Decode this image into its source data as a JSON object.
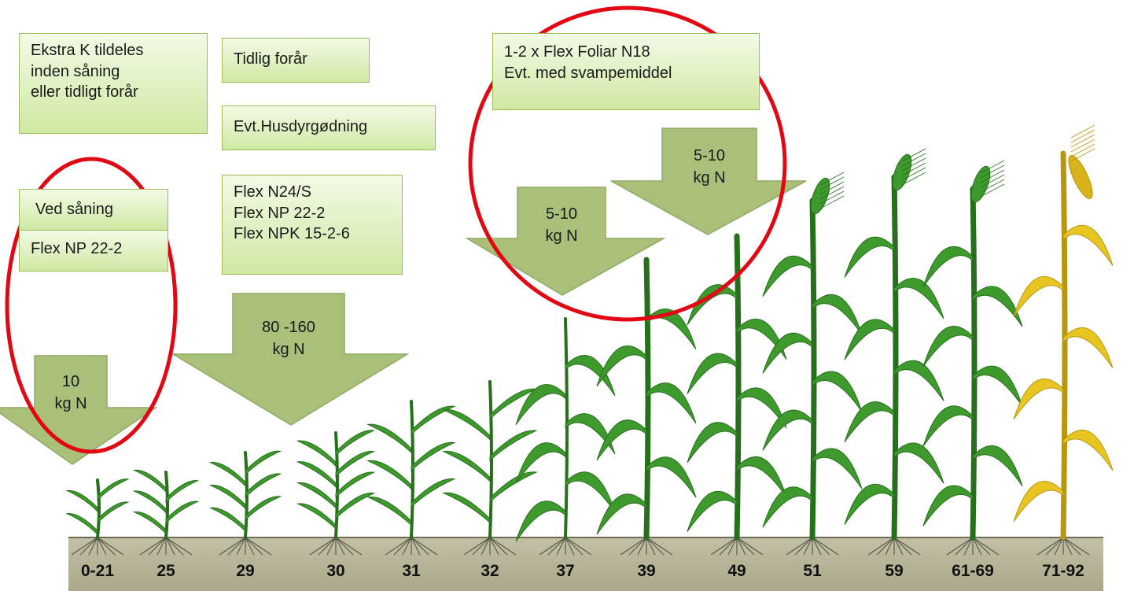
{
  "boxes": {
    "extra_k": [
      "Ekstra K tildeles",
      "inden såning",
      "eller tidligt forår"
    ],
    "tidlig": "Tidlig forår",
    "husdyr": "Evt.Husdyrgødning",
    "ved_saaning": "Ved såning",
    "flex_np_sowing": "Flex NP 22-2",
    "flex_products": [
      "Flex N24/S",
      "Flex NP 22-2",
      "Flex NPK 15-2-6"
    ],
    "foliar": [
      "1-2 x Flex Foliar N18",
      "Evt. med svampemiddel"
    ]
  },
  "arrows": [
    {
      "id": "a10",
      "lines": [
        "10",
        "kg N"
      ]
    },
    {
      "id": "a80",
      "lines": [
        "80 -160",
        "kg N"
      ]
    },
    {
      "id": "a5a",
      "lines": [
        "5-10",
        "kg N"
      ]
    },
    {
      "id": "a5b",
      "lines": [
        "5-10",
        "kg N"
      ]
    }
  ],
  "stages": [
    "0-21",
    "25",
    "29",
    "30",
    "31",
    "32",
    "37",
    "39",
    "49",
    "51",
    "59",
    "61-69",
    "71-92"
  ],
  "colors": {
    "arrow": "#a9c07a",
    "arrow_edge": "#92a964",
    "box_border": "#9bbb59",
    "circle": "#e30613",
    "plant": "#3e9a2c",
    "plant_dark": "#26701c",
    "ripe": "#e8c521",
    "ground": "#b8b59a"
  }
}
